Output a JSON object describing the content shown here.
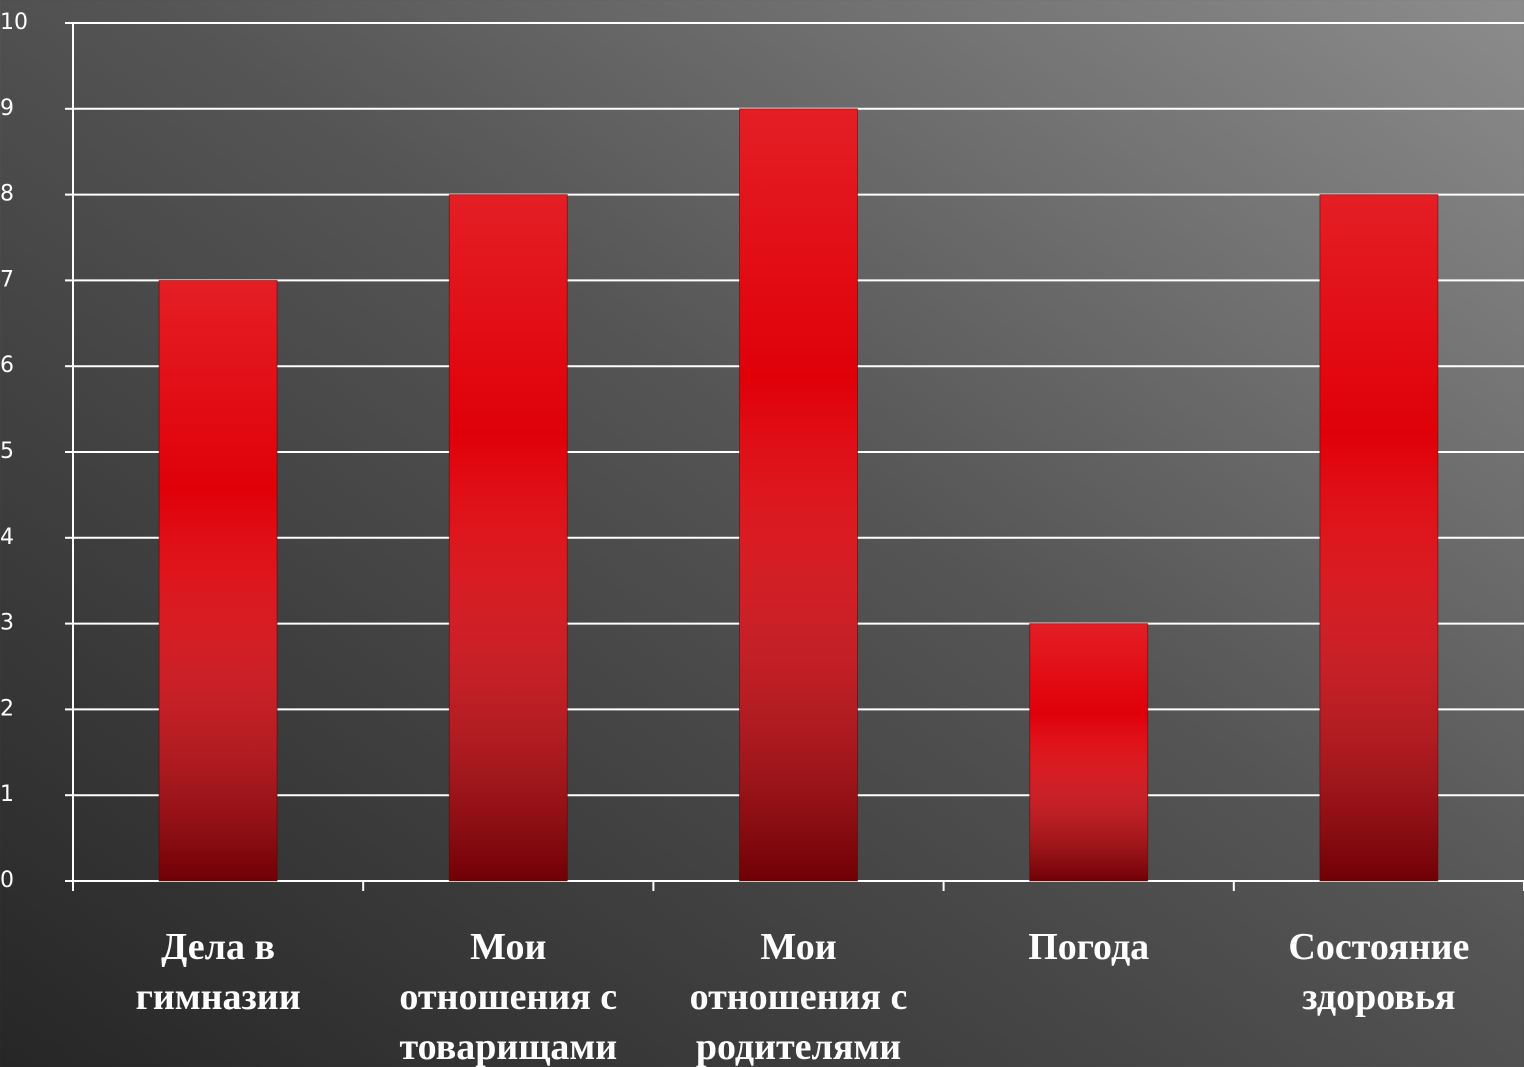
{
  "chart_data": {
    "type": "bar",
    "categories": [
      "Дела в гимназии",
      "Мои отношения с товарищами",
      "Мои отношения с родителями",
      "Погода",
      "Состояние здоровья"
    ],
    "values": [
      7,
      8,
      9,
      3,
      8
    ],
    "color": "#e00008",
    "ylim": [
      0,
      10
    ],
    "yticks": [
      0,
      1,
      2,
      3,
      4,
      5,
      6,
      7,
      8,
      9,
      10
    ],
    "grid": true
  }
}
